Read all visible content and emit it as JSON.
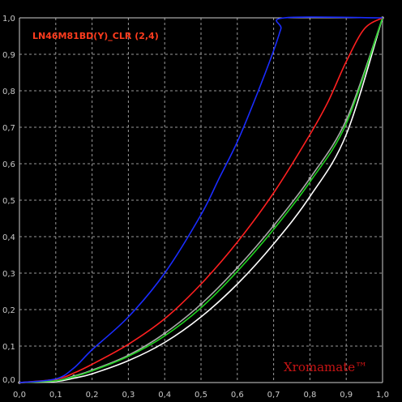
{
  "chart_data": {
    "type": "line",
    "title": "LN46M81BD(Y)_CLR (2,4)",
    "watermark": "Xromamate™",
    "xlim": [
      0,
      1
    ],
    "ylim": [
      0,
      1
    ],
    "grid": true,
    "x_ticks": [
      "0,0",
      "0,1",
      "0,2",
      "0,3",
      "0,4",
      "0,5",
      "0,6",
      "0,7",
      "0,8",
      "0,9",
      "1,0"
    ],
    "y_ticks": [
      "0,0",
      "0,1",
      "0,2",
      "0,3",
      "0,4",
      "0,5",
      "0,6",
      "0,7",
      "0,8",
      "0,9",
      "1,0"
    ],
    "series": [
      {
        "color": "#ffffff",
        "markers": false,
        "x": [
          0,
          0.1,
          0.15,
          0.2,
          0.3,
          0.4,
          0.5,
          0.6,
          0.7,
          0.8,
          0.9,
          1.0
        ],
        "y": [
          0,
          0.003,
          0.012,
          0.024,
          0.06,
          0.11,
          0.18,
          0.27,
          0.38,
          0.51,
          0.68,
          1.0
        ]
      },
      {
        "color": "#aaaaaa",
        "markers": true,
        "x": [
          0,
          0.1,
          0.15,
          0.2,
          0.3,
          0.4,
          0.5,
          0.6,
          0.7,
          0.8,
          0.9,
          1.0
        ],
        "y": [
          0,
          0.005,
          0.018,
          0.034,
          0.075,
          0.135,
          0.215,
          0.315,
          0.43,
          0.56,
          0.72,
          1.0
        ]
      },
      {
        "color": "#20d020",
        "markers": false,
        "x": [
          0,
          0.1,
          0.15,
          0.2,
          0.3,
          0.4,
          0.5,
          0.6,
          0.7,
          0.8,
          0.9,
          1.0
        ],
        "y": [
          0,
          0.005,
          0.016,
          0.032,
          0.072,
          0.128,
          0.205,
          0.305,
          0.42,
          0.55,
          0.71,
          1.0
        ]
      },
      {
        "color": "#ff2020",
        "markers": false,
        "x": [
          0,
          0.1,
          0.15,
          0.2,
          0.3,
          0.4,
          0.5,
          0.6,
          0.7,
          0.8,
          0.85,
          0.9,
          0.95,
          1.0
        ],
        "y": [
          0,
          0.009,
          0.026,
          0.05,
          0.105,
          0.175,
          0.27,
          0.385,
          0.52,
          0.68,
          0.77,
          0.88,
          0.97,
          1.0
        ]
      },
      {
        "color": "#1a2cff",
        "markers": false,
        "x": [
          0,
          0.1,
          0.15,
          0.2,
          0.3,
          0.4,
          0.5,
          0.55,
          0.6,
          0.65,
          0.7,
          0.72,
          0.73,
          1.0
        ],
        "y": [
          0,
          0.01,
          0.04,
          0.09,
          0.18,
          0.3,
          0.46,
          0.56,
          0.66,
          0.78,
          0.91,
          0.97,
          1.0,
          1.0
        ]
      }
    ]
  }
}
